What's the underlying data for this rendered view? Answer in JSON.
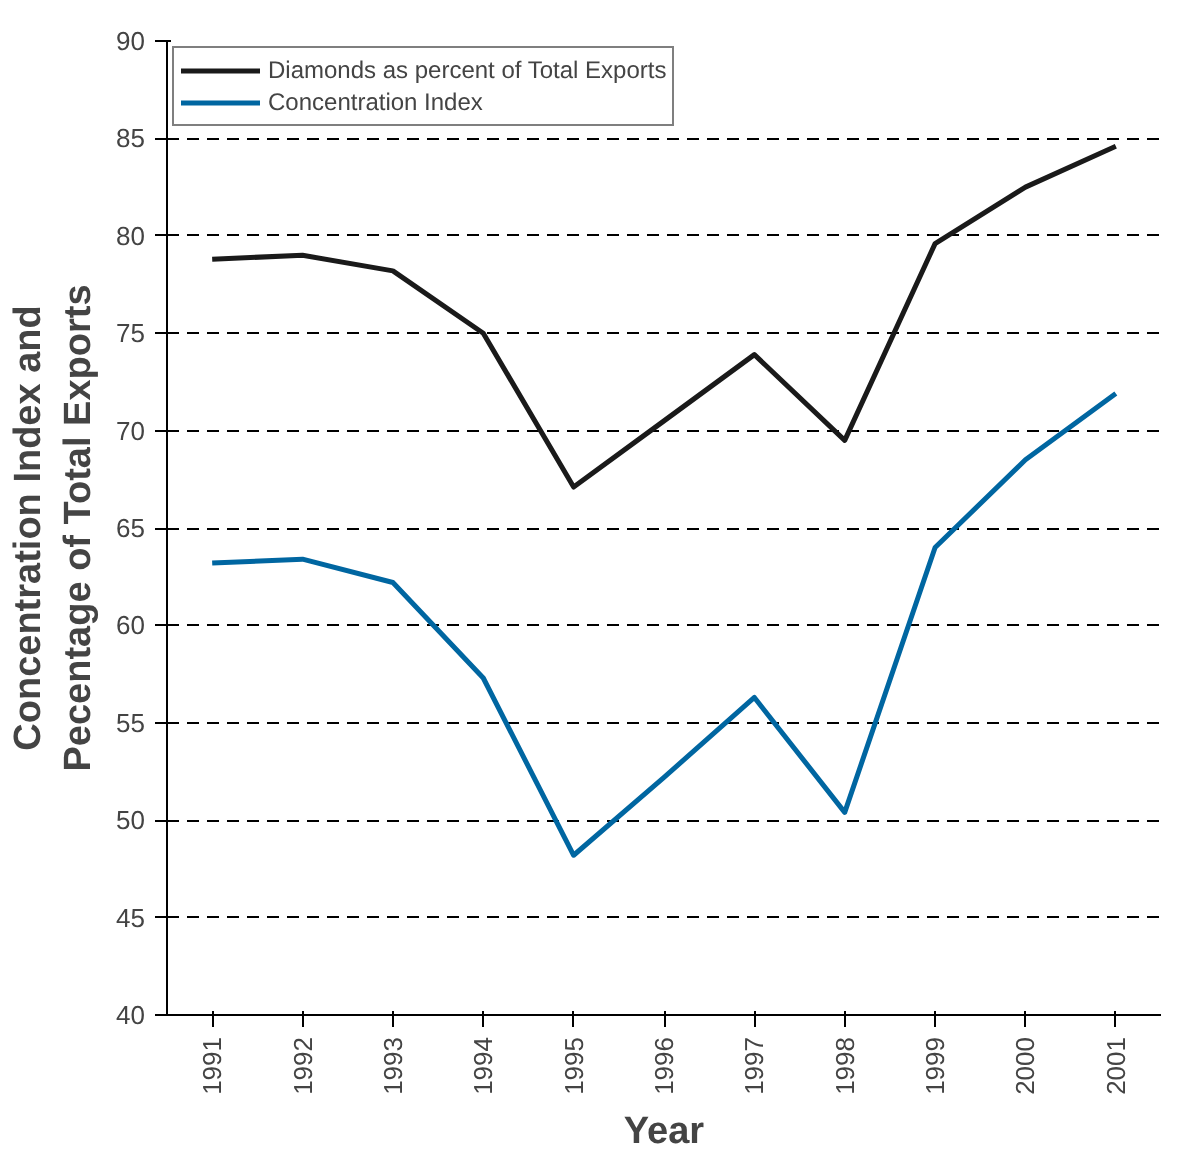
{
  "chart_data": {
    "type": "line",
    "xlabel": "Year",
    "ylabel": "Concentration Index and\nPecentage of Total Exports",
    "categories": [
      "1991",
      "1992",
      "1993",
      "1994",
      "1995",
      "1996",
      "1997",
      "1998",
      "1999",
      "2000",
      "2001"
    ],
    "series": [
      {
        "name": "Diamonds as percent of Total Exports",
        "color": "#1a1a1a",
        "values": [
          78.8,
          79.0,
          78.2,
          75.0,
          67.1,
          70.5,
          73.9,
          69.5,
          79.6,
          82.5,
          84.6
        ]
      },
      {
        "name": "Concentration Index",
        "color": "#0066a1",
        "values": [
          63.2,
          63.4,
          62.2,
          57.3,
          48.2,
          52.2,
          56.3,
          50.4,
          64.0,
          68.5,
          71.9
        ]
      }
    ],
    "ylim": [
      40,
      90
    ],
    "yticks": [
      40,
      45,
      50,
      55,
      60,
      65,
      70,
      75,
      80,
      85,
      90
    ],
    "grid": "y",
    "legend": "top left",
    "line_style": "solid",
    "marker": "none"
  }
}
